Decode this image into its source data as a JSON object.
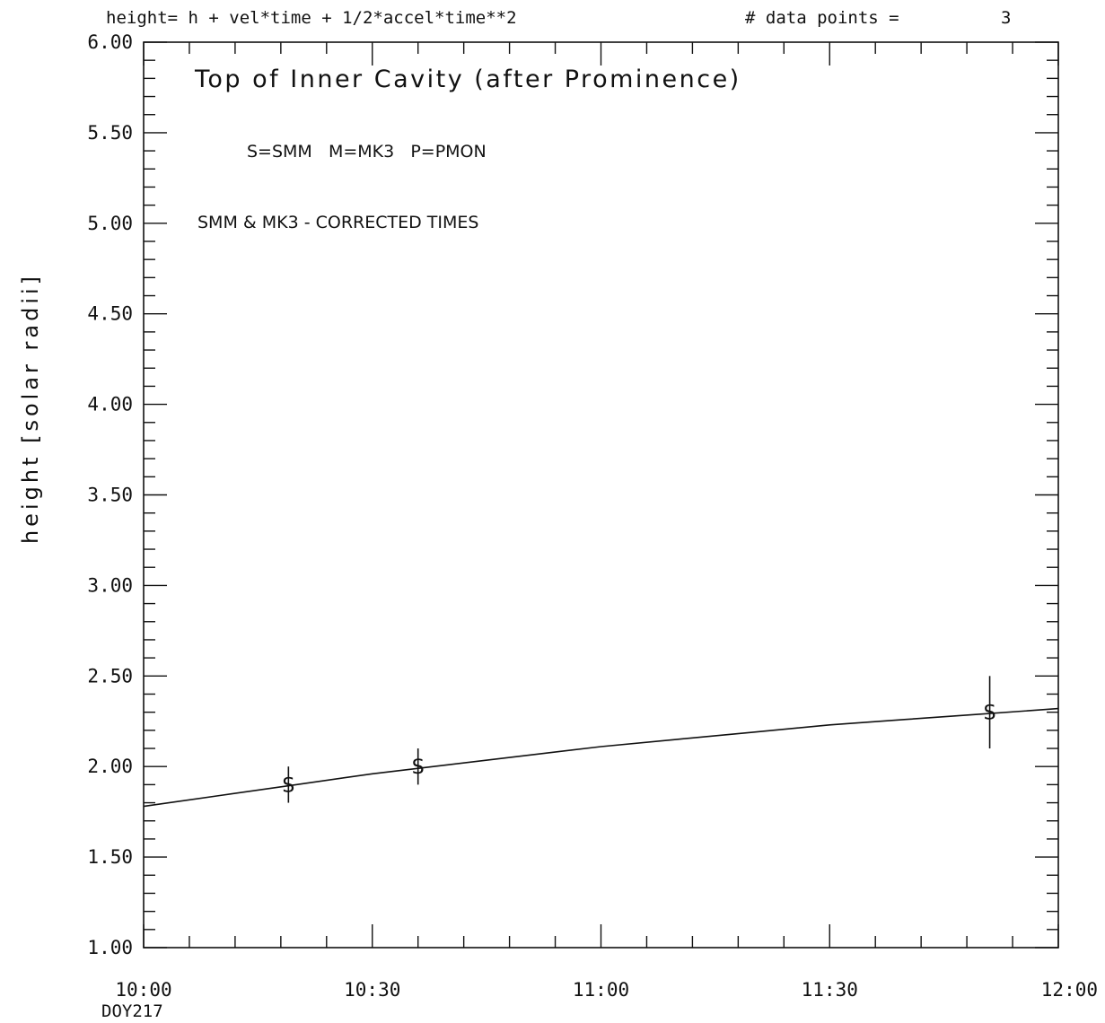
{
  "chart_data": {
    "type": "scatter",
    "header_formula": "height= h + vel*time + 1/2*accel*time**2",
    "header_count_label": "# data points =",
    "header_count_value": "3",
    "title": "Top of Inner Cavity (after Prominence)",
    "legend_text": "S=SMM   M=MK3   P=PMON",
    "note_text": "SMM & MK3 - CORRECTED TIMES",
    "ylabel": "height [solar radii]",
    "xlabel": "",
    "x_sublabel": "DOY217",
    "xlim": [
      "10:00",
      "12:00"
    ],
    "ylim": [
      1.0,
      6.0
    ],
    "x_tick_labels": [
      "10:00",
      "10:30",
      "11:00",
      "11:30",
      "12:00"
    ],
    "y_tick_labels": [
      "1.00",
      "1.50",
      "2.00",
      "2.50",
      "3.00",
      "3.50",
      "4.00",
      "4.50",
      "5.00",
      "5.50",
      "6.00"
    ],
    "series": [
      {
        "marker": "S",
        "x": [
          "10:19",
          "10:36",
          "11:51"
        ],
        "y": [
          1.9,
          2.0,
          2.3
        ],
        "error_low": [
          1.8,
          1.9,
          2.1
        ],
        "error_high": [
          2.0,
          2.1,
          2.5
        ]
      }
    ],
    "fit_curve": {
      "x": [
        "10:00",
        "10:10",
        "10:20",
        "10:30",
        "10:40",
        "10:50",
        "11:00",
        "11:10",
        "11:20",
        "11:30",
        "11:40",
        "11:50",
        "12:00"
      ],
      "y": [
        1.78,
        1.84,
        1.9,
        1.96,
        2.01,
        2.06,
        2.11,
        2.15,
        2.19,
        2.23,
        2.26,
        2.29,
        2.32
      ]
    },
    "grid": false
  }
}
